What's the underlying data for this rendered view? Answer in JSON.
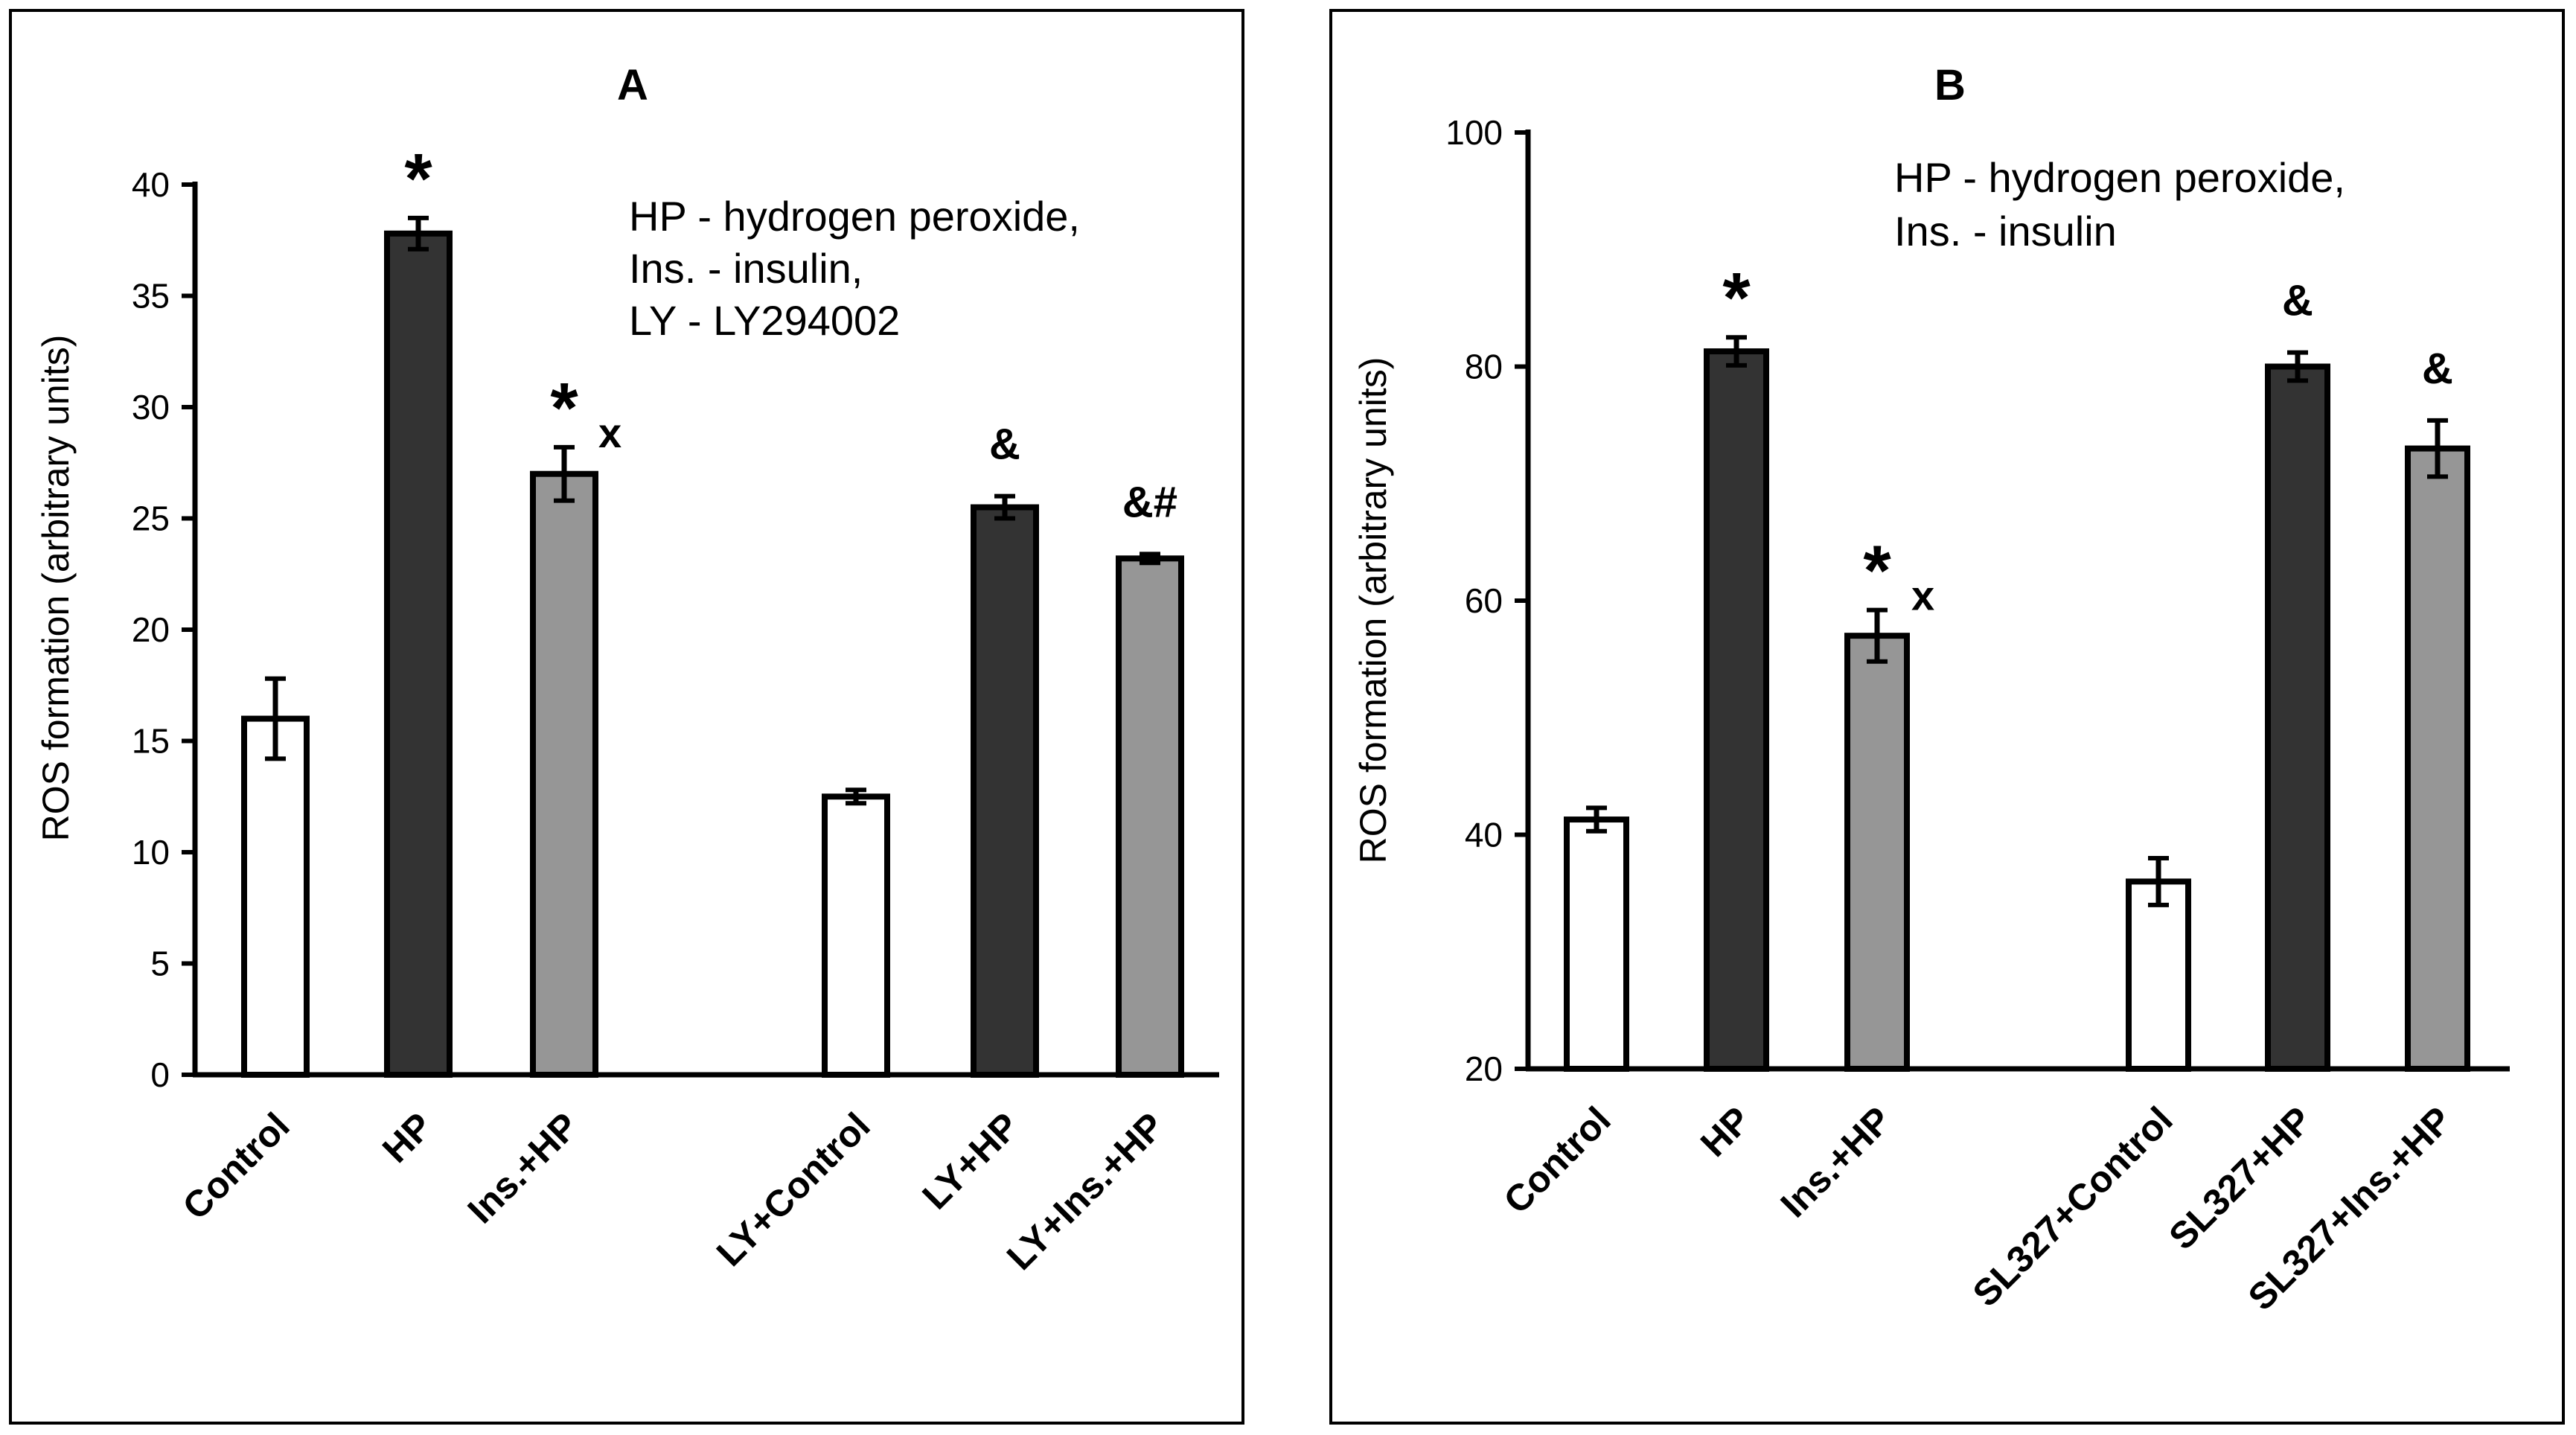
{
  "chart_data": [
    {
      "type": "bar",
      "panel": "A",
      "title": "A",
      "ylabel": "ROS formation  (arbitrary units)",
      "ylim": [
        0,
        40
      ],
      "yticks": [
        0,
        5,
        10,
        15,
        20,
        25,
        30,
        35,
        40
      ],
      "grid": false,
      "notes": [
        "HP - hydrogen peroxide,",
        "Ins. - insulin,",
        "LY - LY294002"
      ],
      "categories": [
        "Control",
        "HP",
        "Ins.+HP",
        "LY+Control",
        "LY+HP",
        "LY+Ins.+HP"
      ],
      "values": [
        16.0,
        37.8,
        27.0,
        12.5,
        25.5,
        23.2
      ],
      "errors": [
        1.8,
        0.7,
        1.2,
        0.3,
        0.5,
        0.2
      ],
      "bar_colors": [
        "#ffffff",
        "#333333",
        "#969696",
        "#ffffff",
        "#333333",
        "#969696"
      ],
      "significance": [
        {
          "symbol": "",
          "sub": ""
        },
        {
          "symbol": "*",
          "sub": ""
        },
        {
          "symbol": "*",
          "sub": "x"
        },
        {
          "symbol": "",
          "sub": ""
        },
        {
          "symbol": "&",
          "sub": ""
        },
        {
          "symbol": "&#",
          "sub": ""
        }
      ]
    },
    {
      "type": "bar",
      "panel": "B",
      "title": "B",
      "ylabel": "ROS formation  (arbitrary units)",
      "ylim": [
        20,
        100
      ],
      "yticks": [
        20,
        40,
        60,
        80,
        100
      ],
      "grid": false,
      "notes": [
        "HP - hydrogen peroxide,",
        "Ins. - insulin"
      ],
      "categories": [
        "Control",
        "HP",
        "Ins.+HP",
        "SL327+Control",
        "SL327+HP",
        "SL327+Ins.+HP"
      ],
      "values": [
        41.3,
        81.3,
        57.0,
        36.0,
        80.0,
        73.0
      ],
      "errors": [
        1.0,
        1.2,
        2.2,
        2.0,
        1.2,
        2.4
      ],
      "bar_colors": [
        "#ffffff",
        "#333333",
        "#969696",
        "#ffffff",
        "#333333",
        "#969696"
      ],
      "significance": [
        {
          "symbol": "",
          "sub": ""
        },
        {
          "symbol": "*",
          "sub": ""
        },
        {
          "symbol": "*",
          "sub": "x"
        },
        {
          "symbol": "",
          "sub": ""
        },
        {
          "symbol": "&",
          "sub": ""
        },
        {
          "symbol": "&",
          "sub": ""
        }
      ]
    }
  ]
}
